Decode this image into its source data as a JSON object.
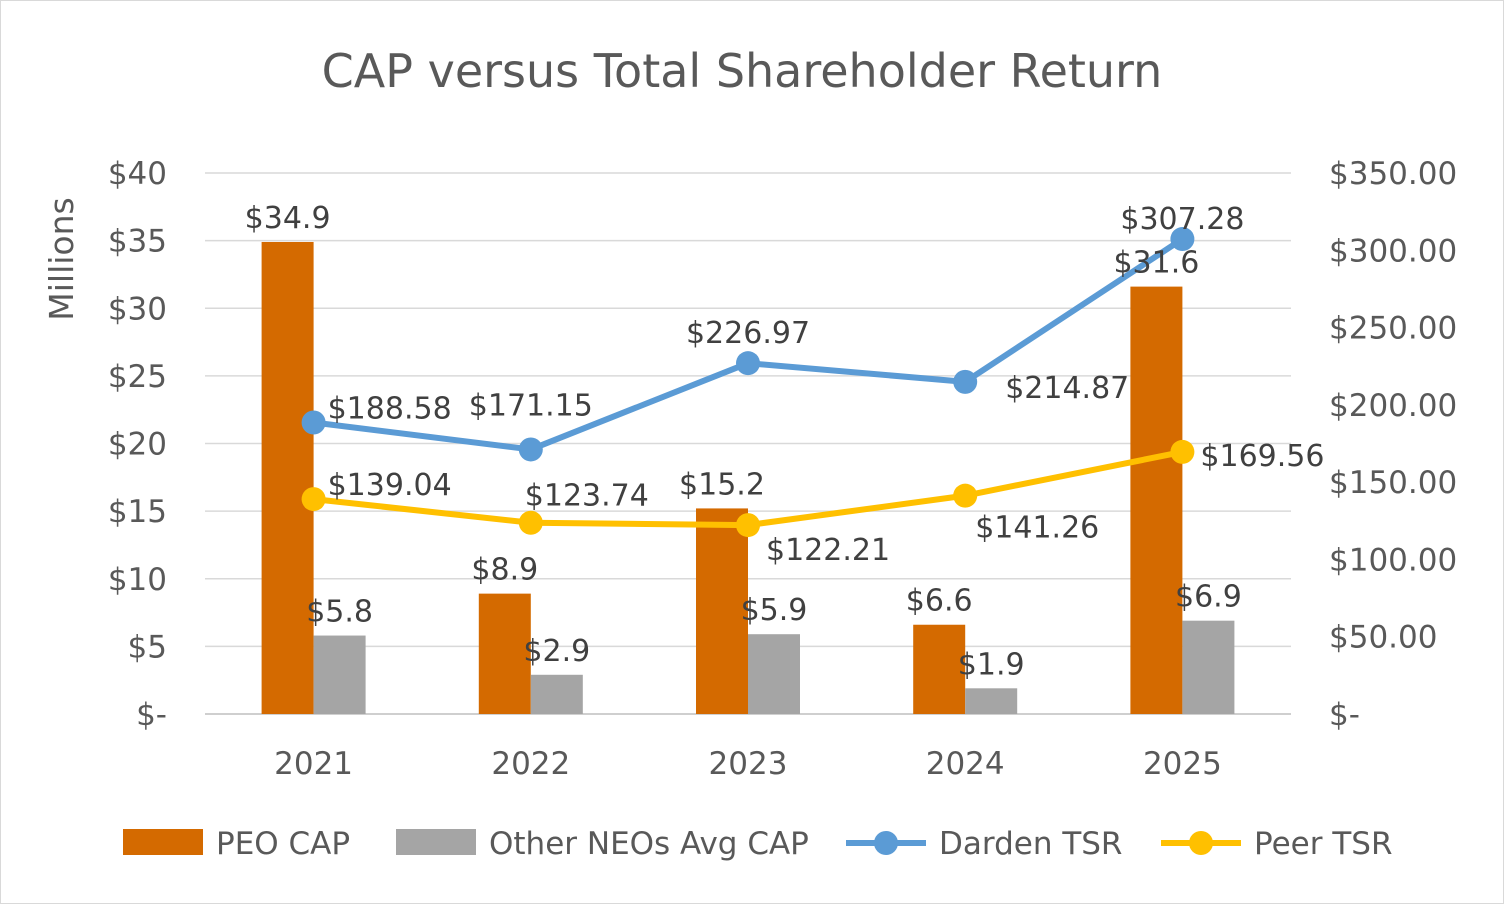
{
  "chart_data": {
    "type": "bar",
    "title": "CAP versus Total Shareholder Return",
    "left_axis_unit": "Millions",
    "categories": [
      "2021",
      "2022",
      "2023",
      "2024",
      "2025"
    ],
    "y_left": {
      "min": 0,
      "max": 40,
      "step": 5,
      "tick_labels": [
        "$-",
        "$5",
        "$10",
        "$15",
        "$20",
        "$25",
        "$30",
        "$35",
        "$40"
      ]
    },
    "y_right": {
      "min": 0,
      "max": 350,
      "step": 50,
      "tick_labels": [
        "$-",
        "$50.00",
        "$100.00",
        "$150.00",
        "$200.00",
        "$250.00",
        "$300.00",
        "$350.00"
      ]
    },
    "gridlines": true,
    "legend_position": "bottom",
    "series": [
      {
        "name": "PEO CAP",
        "kind": "bar",
        "axis": "left",
        "color": "#D46A00",
        "values": [
          34.9,
          8.9,
          15.2,
          6.6,
          31.6
        ],
        "labels": [
          "$34.9",
          "$8.9",
          "$15.2",
          "$6.6",
          "$31.6"
        ]
      },
      {
        "name": "Other NEOs Avg CAP",
        "kind": "bar",
        "axis": "left",
        "color": "#A5A5A5",
        "values": [
          5.8,
          2.9,
          5.9,
          1.9,
          6.9
        ],
        "labels": [
          "$5.8",
          "$2.9",
          "$5.9",
          "$1.9",
          "$6.9"
        ]
      },
      {
        "name": "Darden TSR",
        "kind": "line",
        "axis": "right",
        "color": "#5B9BD5",
        "values": [
          188.58,
          171.15,
          226.97,
          214.87,
          307.28
        ],
        "labels": [
          "$188.58",
          "$171.15",
          "$226.97",
          "$214.87",
          "$307.28"
        ]
      },
      {
        "name": "Peer TSR",
        "kind": "line",
        "axis": "right",
        "color": "#FFC000",
        "values": [
          139.04,
          123.74,
          122.21,
          141.26,
          169.56
        ],
        "labels": [
          "$139.04",
          "$123.74",
          "$122.21",
          "$141.26",
          "$169.56"
        ]
      }
    ]
  }
}
